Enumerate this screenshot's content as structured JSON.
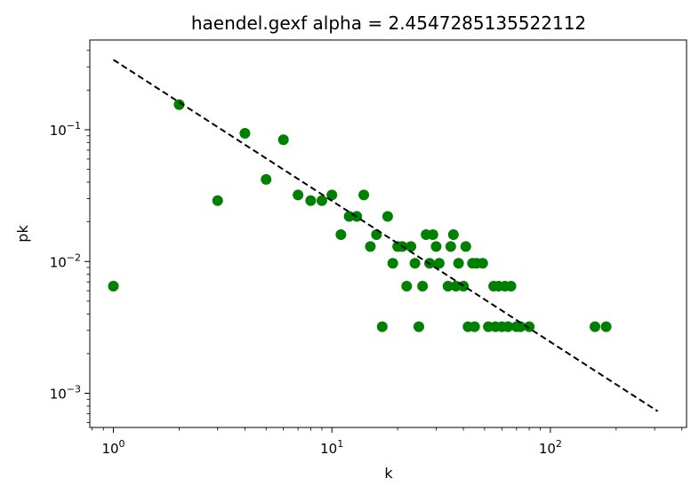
{
  "chart_data": {
    "type": "scatter",
    "title": "haendel.gexf alpha = 2.4547285135522112",
    "xlabel": "k",
    "ylabel": "pk",
    "xscale": "log",
    "yscale": "log",
    "xlim": [
      0.78,
      420
    ],
    "ylim": [
      0.00055,
      0.48
    ],
    "grid": false,
    "x_ticks": [
      {
        "value": 1,
        "base": "10",
        "exp": "0"
      },
      {
        "value": 10,
        "base": "10",
        "exp": "1"
      },
      {
        "value": 100,
        "base": "10",
        "exp": "2"
      }
    ],
    "y_ticks": [
      {
        "value": 0.001,
        "base": "10",
        "exp": "−3"
      },
      {
        "value": 0.01,
        "base": "10",
        "exp": "−2"
      },
      {
        "value": 0.1,
        "base": "10",
        "exp": "−1"
      }
    ],
    "series": [
      {
        "kind": "points",
        "color": "#008000",
        "points": [
          [
            1,
            0.0065
          ],
          [
            2,
            0.155
          ],
          [
            3,
            0.029
          ],
          [
            4,
            0.094
          ],
          [
            5,
            0.042
          ],
          [
            6,
            0.084
          ],
          [
            7,
            0.032
          ],
          [
            8,
            0.029
          ],
          [
            9,
            0.029
          ],
          [
            10,
            0.032
          ],
          [
            11,
            0.016
          ],
          [
            12,
            0.022
          ],
          [
            13,
            0.022
          ],
          [
            14,
            0.032
          ],
          [
            15,
            0.013
          ],
          [
            16,
            0.016
          ],
          [
            17,
            0.0032
          ],
          [
            18,
            0.022
          ],
          [
            19,
            0.0097
          ],
          [
            20,
            0.013
          ],
          [
            21,
            0.013
          ],
          [
            22,
            0.0065
          ],
          [
            23,
            0.013
          ],
          [
            24,
            0.0097
          ],
          [
            25,
            0.0032
          ],
          [
            26,
            0.0065
          ],
          [
            27,
            0.016
          ],
          [
            28,
            0.0097
          ],
          [
            29,
            0.016
          ],
          [
            30,
            0.013
          ],
          [
            31,
            0.0097
          ],
          [
            34,
            0.0065
          ],
          [
            35,
            0.013
          ],
          [
            36,
            0.016
          ],
          [
            37,
            0.0065
          ],
          [
            38,
            0.0097
          ],
          [
            40,
            0.0065
          ],
          [
            41,
            0.013
          ],
          [
            42,
            0.0032
          ],
          [
            44,
            0.0097
          ],
          [
            45,
            0.0032
          ],
          [
            46,
            0.0097
          ],
          [
            49,
            0.0097
          ],
          [
            52,
            0.0032
          ],
          [
            55,
            0.0065
          ],
          [
            56,
            0.0032
          ],
          [
            58,
            0.0065
          ],
          [
            60,
            0.0032
          ],
          [
            62,
            0.0065
          ],
          [
            64,
            0.0032
          ],
          [
            66,
            0.0065
          ],
          [
            70,
            0.0032
          ],
          [
            73,
            0.0032
          ],
          [
            80,
            0.0032
          ],
          [
            160,
            0.0032
          ],
          [
            180,
            0.0032
          ]
        ]
      },
      {
        "kind": "fit-line",
        "color": "#000000",
        "dashed": true,
        "x": [
          1,
          310
        ],
        "y": [
          0.34,
          0.00073
        ]
      }
    ]
  }
}
